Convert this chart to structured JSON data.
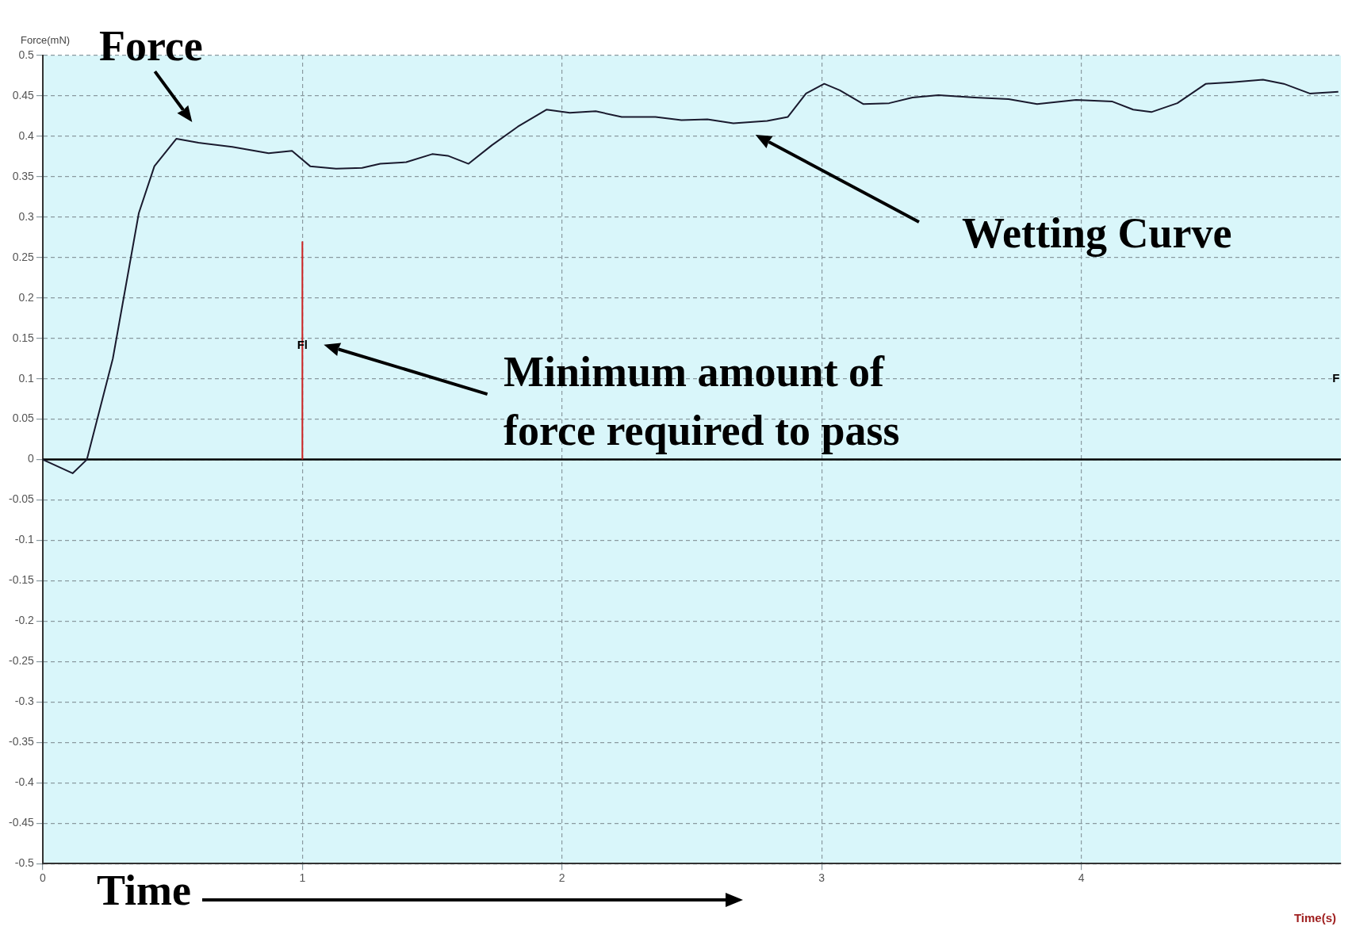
{
  "chart_data": {
    "type": "line",
    "ylabel": "Force(mN)",
    "xlabel": "Time(s)",
    "series": [
      {
        "color": "#1a1a2e",
        "x": [
          0,
          0.115,
          0.17,
          0.27,
          0.37,
          0.43,
          0.515,
          0.6,
          0.73,
          0.87,
          0.96,
          1.03,
          1.13,
          1.23,
          1.3,
          1.4,
          1.5,
          1.56,
          1.64,
          1.73,
          1.83,
          1.94,
          2.03,
          2.13,
          2.23,
          2.36,
          2.46,
          2.56,
          2.66,
          2.79,
          2.87,
          2.94,
          3.01,
          3.07,
          3.16,
          3.26,
          3.35,
          3.45,
          3.59,
          3.72,
          3.83,
          3.98,
          4.12,
          4.2,
          4.27,
          4.37,
          4.48,
          4.58,
          4.7,
          4.78,
          4.88,
          4.99
        ],
        "values": [
          0,
          -0.017,
          0,
          0.125,
          0.305,
          0.363,
          0.397,
          0.392,
          0.387,
          0.379,
          0.382,
          0.363,
          0.36,
          0.361,
          0.366,
          0.368,
          0.378,
          0.376,
          0.366,
          0.389,
          0.412,
          0.433,
          0.429,
          0.431,
          0.424,
          0.424,
          0.42,
          0.421,
          0.416,
          0.419,
          0.424,
          0.453,
          0.465,
          0.457,
          0.44,
          0.441,
          0.448,
          0.451,
          0.448,
          0.446,
          0.44,
          0.445,
          0.443,
          0.433,
          0.43,
          0.441,
          0.465,
          0.467,
          0.47,
          0.465,
          0.453,
          0.455
        ]
      },
      {
        "color": "#cc2222",
        "x": [
          1,
          1
        ],
        "values": [
          0,
          0.27
        ]
      }
    ],
    "xlim": [
      0,
      5
    ],
    "xticks": [
      0,
      1,
      2,
      3,
      4
    ],
    "ylim": [
      -0.5,
      0.5
    ],
    "yticks": [
      -0.5,
      -0.45,
      -0.4,
      -0.35,
      -0.3,
      -0.25,
      -0.2,
      -0.15,
      -0.1,
      -0.05,
      0,
      0.05,
      0.1,
      0.15,
      0.2,
      0.25,
      0.3,
      0.35,
      0.4,
      0.45,
      0.5
    ],
    "grid": true,
    "line_style": "solid",
    "marker": "none",
    "ref_lines": [
      {
        "axis": "y",
        "value": 0,
        "color": "#000000"
      }
    ],
    "annotations": [
      {
        "text": "Force",
        "x": 0.6,
        "y": 0.392
      },
      "Time",
      "Wetting Curve",
      "Minimum amount of force required to pass",
      {
        "text": "Fl",
        "x": 1,
        "y": 0.141
      },
      "F"
    ]
  }
}
